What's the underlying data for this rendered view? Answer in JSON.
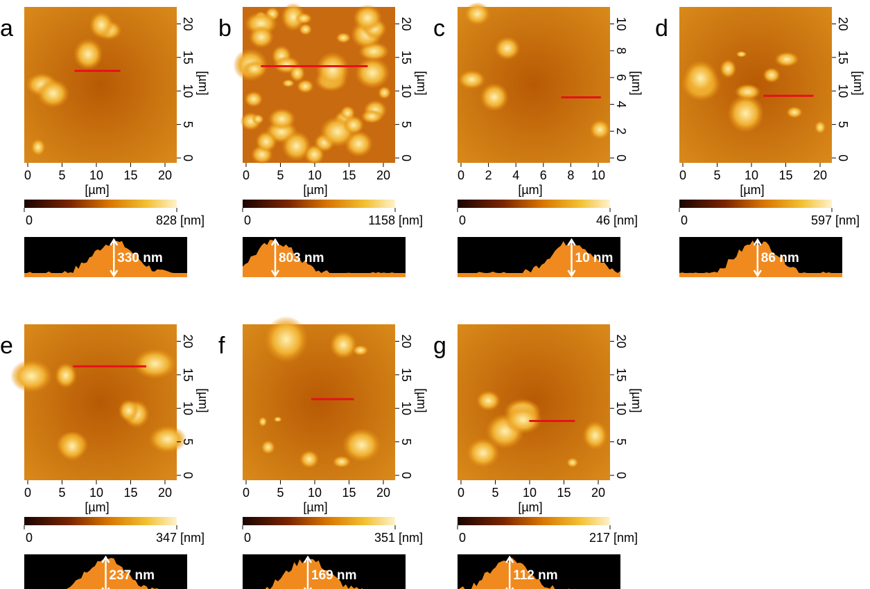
{
  "panels": [
    {
      "letter": "a",
      "xticks": [
        0,
        5,
        10,
        15,
        20
      ],
      "yticks": [
        0,
        5,
        10,
        15,
        20
      ],
      "x_unit": "[µm]",
      "y_unit": "[µm]",
      "cbar_min": 0,
      "cbar_max": 828,
      "cbar_unit": "[nm]",
      "profile_label": "330 nm"
    },
    {
      "letter": "b",
      "xticks": [
        0,
        5,
        10,
        15,
        20
      ],
      "yticks": [
        0,
        5,
        10,
        15,
        20
      ],
      "x_unit": "[µm]",
      "y_unit": "[µm]",
      "cbar_min": 0,
      "cbar_max": 1158,
      "cbar_unit": "[nm]",
      "profile_label": "803 nm"
    },
    {
      "letter": "c",
      "xticks": [
        0,
        2,
        4,
        6,
        8,
        10
      ],
      "yticks": [
        0,
        2,
        4,
        6,
        8,
        10
      ],
      "x_unit": "[µm]",
      "y_unit": "[µm]",
      "cbar_min": 0,
      "cbar_max": 46,
      "cbar_unit": "[nm]",
      "profile_label": "10 nm"
    },
    {
      "letter": "d",
      "xticks": [
        0,
        5,
        10,
        15,
        20
      ],
      "yticks": [
        0,
        5,
        10,
        15,
        20
      ],
      "x_unit": "[µm]",
      "y_unit": "[µm]",
      "cbar_min": 0,
      "cbar_max": 597,
      "cbar_unit": "[nm]",
      "profile_label": "86 nm"
    },
    {
      "letter": "e",
      "xticks": [
        0,
        5,
        10,
        15,
        20
      ],
      "yticks": [
        0,
        5,
        10,
        15,
        20
      ],
      "x_unit": "[µm]",
      "y_unit": "[µm]",
      "cbar_min": 0,
      "cbar_max": 347,
      "cbar_unit": "[nm]",
      "profile_label": "237 nm"
    },
    {
      "letter": "f",
      "xticks": [
        0,
        5,
        10,
        15,
        20
      ],
      "yticks": [
        0,
        5,
        10,
        15,
        20
      ],
      "x_unit": "[µm]",
      "y_unit": "[µm]",
      "cbar_min": 0,
      "cbar_max": 351,
      "cbar_unit": "[nm]",
      "profile_label": "169 nm"
    },
    {
      "letter": "g",
      "xticks": [
        0,
        5,
        10,
        15,
        20
      ],
      "yticks": [
        0,
        5,
        10,
        15,
        20
      ],
      "x_unit": "[µm]",
      "y_unit": "[µm]",
      "cbar_min": 0,
      "cbar_max": 217,
      "cbar_unit": "[nm]",
      "profile_label": "112 nm"
    }
  ]
}
